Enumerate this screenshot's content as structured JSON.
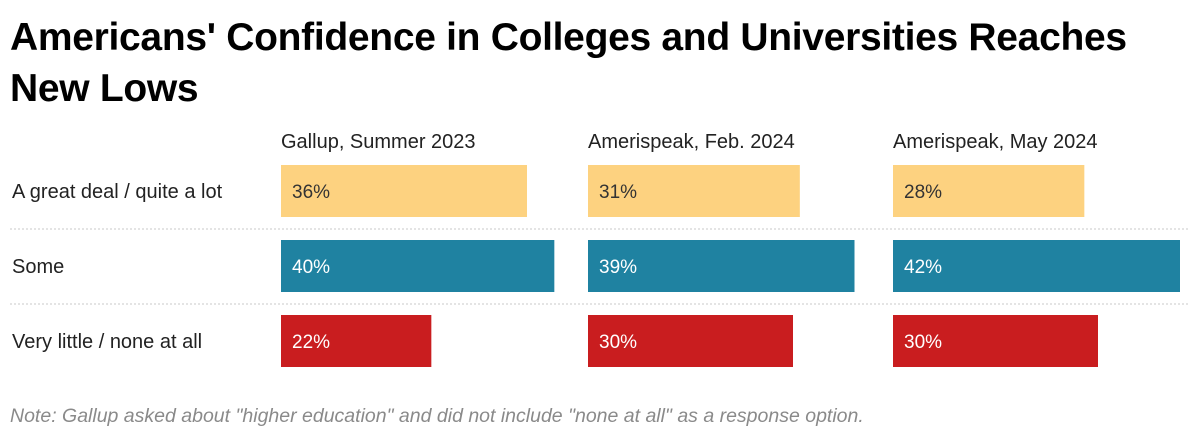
{
  "chart_data": {
    "type": "bar",
    "title": "Americans' Confidence in Colleges and Universities Reaches New Lows",
    "note": "Note: Gallup asked about \"higher education\" and did not include \"none at all\" as a response option.",
    "orientation": "horizontal",
    "layout": "small-multiples",
    "value_suffix": "%",
    "xlim": [
      0,
      42
    ],
    "grid": false,
    "categories": [
      "A great deal / quite a lot",
      "Some",
      "Very little / none at all"
    ],
    "category_colors": [
      "#fdd280",
      "#1f82a1",
      "#c91d1f"
    ],
    "series": [
      {
        "name": "Gallup, Summer 2023",
        "values": [
          36,
          40,
          22
        ]
      },
      {
        "name": "Amerispeak, Feb. 2024",
        "values": [
          31,
          39,
          30
        ]
      },
      {
        "name": "Amerispeak, May 2024",
        "values": [
          28,
          42,
          30
        ]
      }
    ]
  }
}
